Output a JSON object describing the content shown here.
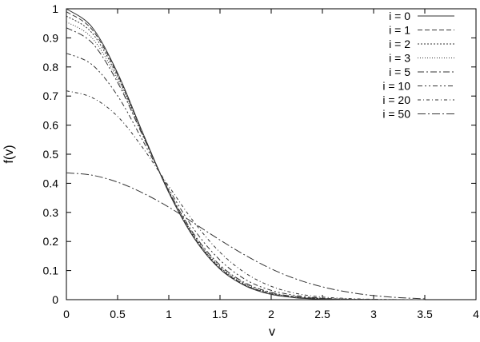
{
  "chart_data": {
    "type": "line",
    "title": "",
    "xlabel": "v",
    "ylabel": "f(v)",
    "xlim": [
      0,
      4
    ],
    "ylim": [
      0,
      1
    ],
    "grid": false,
    "legend_position": "top-right",
    "x_ticks": [
      "0",
      "0.5",
      "1",
      "1.5",
      "2",
      "2.5",
      "3",
      "3.5",
      "4"
    ],
    "y_ticks": [
      "0",
      "0.1",
      "0.2",
      "0.3",
      "0.4",
      "0.5",
      "0.6",
      "0.7",
      "0.8",
      "0.9",
      "1"
    ],
    "x": [
      0,
      0.25,
      0.5,
      0.75,
      1.0,
      1.25,
      1.5,
      1.75,
      2.0,
      2.25,
      2.5,
      2.75,
      3.0,
      3.25,
      3.5
    ],
    "series": [
      {
        "name": "i = 0",
        "dash": "none",
        "values": [
          1.0,
          0.937,
          0.779,
          0.57,
          0.368,
          0.21,
          0.105,
          0.047,
          0.018,
          0.006,
          0.002,
          0.0005,
          0.0001,
          0,
          0
        ]
      },
      {
        "name": "i = 1",
        "dash": "6,3",
        "values": [
          0.99,
          0.929,
          0.774,
          0.569,
          0.369,
          0.212,
          0.108,
          0.049,
          0.02,
          0.007,
          0.002,
          0.0006,
          0.0002,
          0,
          0
        ]
      },
      {
        "name": "i = 2",
        "dash": "2,2",
        "values": [
          0.975,
          0.917,
          0.767,
          0.566,
          0.371,
          0.215,
          0.111,
          0.051,
          0.021,
          0.008,
          0.003,
          0.0008,
          0.0002,
          0,
          0
        ]
      },
      {
        "name": "i = 3",
        "dash": "1,2",
        "values": [
          0.955,
          0.9,
          0.757,
          0.563,
          0.372,
          0.219,
          0.115,
          0.054,
          0.023,
          0.009,
          0.003,
          0.001,
          0.0003,
          0,
          0
        ]
      },
      {
        "name": "i = 5",
        "dash": "8,3,2,3",
        "values": [
          0.935,
          0.883,
          0.747,
          0.56,
          0.374,
          0.223,
          0.119,
          0.057,
          0.025,
          0.01,
          0.004,
          0.001,
          0.0004,
          0,
          0
        ]
      },
      {
        "name": "i = 10",
        "dash": "6,3,2,3,2,3",
        "values": [
          0.847,
          0.808,
          0.701,
          0.544,
          0.381,
          0.24,
          0.136,
          0.069,
          0.032,
          0.014,
          0.005,
          0.002,
          0.0007,
          0.0002,
          0
        ]
      },
      {
        "name": "i = 20",
        "dash": "4,3,1,3",
        "values": [
          0.718,
          0.695,
          0.63,
          0.52,
          0.39,
          0.265,
          0.163,
          0.091,
          0.046,
          0.021,
          0.009,
          0.004,
          0.0013,
          0.0004,
          0.0001
        ]
      },
      {
        "name": "i = 50",
        "dash": "10,3,2,3",
        "values": [
          0.436,
          0.428,
          0.404,
          0.366,
          0.318,
          0.262,
          0.205,
          0.152,
          0.106,
          0.07,
          0.044,
          0.026,
          0.014,
          0.007,
          0.003
        ]
      }
    ]
  }
}
